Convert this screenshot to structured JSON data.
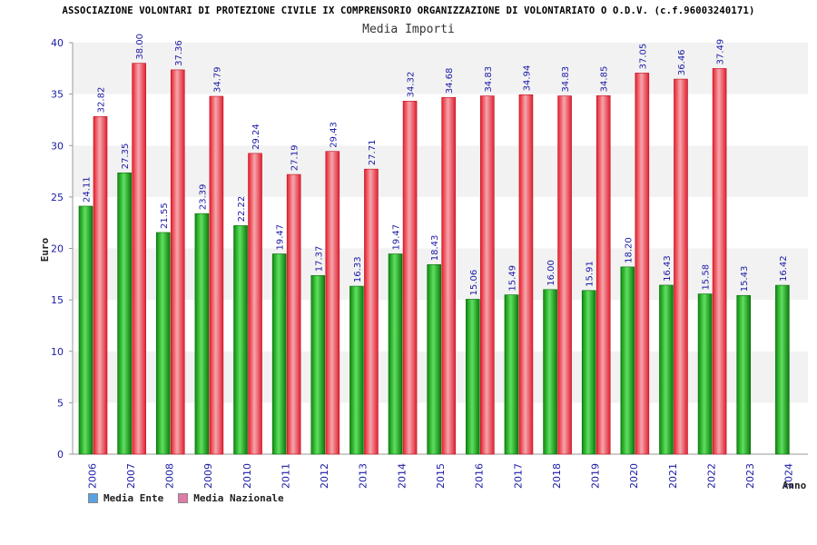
{
  "title": "ASSOCIAZIONE VOLONTARI DI PROTEZIONE CIVILE IX COMPRENSORIO ORGANIZZAZIONE DI VOLONTARIATO O O.D.V. (c.f.96003240171)",
  "colors": {
    "ente_bar": "#22b022",
    "nazionale_bar": "#e8323c",
    "legend_ente": "#5aa0e6",
    "legend_nazionale": "#e07aa8",
    "band": "#f2f2f2",
    "tick_text": "#1a1aa6"
  },
  "legend": {
    "items": [
      {
        "name": "Media Ente"
      },
      {
        "name": "Media Nazionale"
      }
    ]
  },
  "chart_data": {
    "type": "bar",
    "title": "Media Importi",
    "xlabel": "Anno",
    "ylabel": "Euro",
    "ylim": [
      0,
      40
    ],
    "yticks": [
      0,
      5,
      10,
      15,
      20,
      25,
      30,
      35,
      40
    ],
    "categories": [
      "2006",
      "2007",
      "2008",
      "2009",
      "2010",
      "2011",
      "2012",
      "2013",
      "2014",
      "2015",
      "2016",
      "2017",
      "2018",
      "2019",
      "2020",
      "2021",
      "2022",
      "2023",
      "2024"
    ],
    "series": [
      {
        "name": "Media Ente",
        "values": [
          24.11,
          27.35,
          21.55,
          23.39,
          22.22,
          19.47,
          17.37,
          16.33,
          19.47,
          18.43,
          15.06,
          15.49,
          16.0,
          15.91,
          18.2,
          16.43,
          15.58,
          15.43,
          16.42
        ],
        "labels": [
          "24.11",
          "27.35",
          "21.55",
          "23.39",
          "22.22",
          "19.47",
          "17.37",
          "16.33",
          "19.47",
          "18.43",
          "15.06",
          "15.49",
          "16.00",
          "15.91",
          "18.20",
          "16.43",
          "15.58",
          "15.43",
          "16.42"
        ]
      },
      {
        "name": "Media Nazionale",
        "values": [
          32.82,
          38.0,
          37.36,
          34.79,
          29.24,
          27.19,
          29.43,
          27.71,
          34.32,
          34.68,
          34.83,
          34.94,
          34.83,
          34.85,
          37.05,
          36.46,
          37.49,
          null,
          null
        ],
        "labels": [
          "32.82",
          "38.00",
          "37.36",
          "34.79",
          "29.24",
          "27.19",
          "29.43",
          "27.71",
          "34.32",
          "34.68",
          "34.83",
          "34.94",
          "34.83",
          "34.85",
          "37.05",
          "36.46",
          "37.49",
          "",
          ""
        ]
      }
    ],
    "grid": "horizontal-bands",
    "legend_position": "bottom-left"
  }
}
